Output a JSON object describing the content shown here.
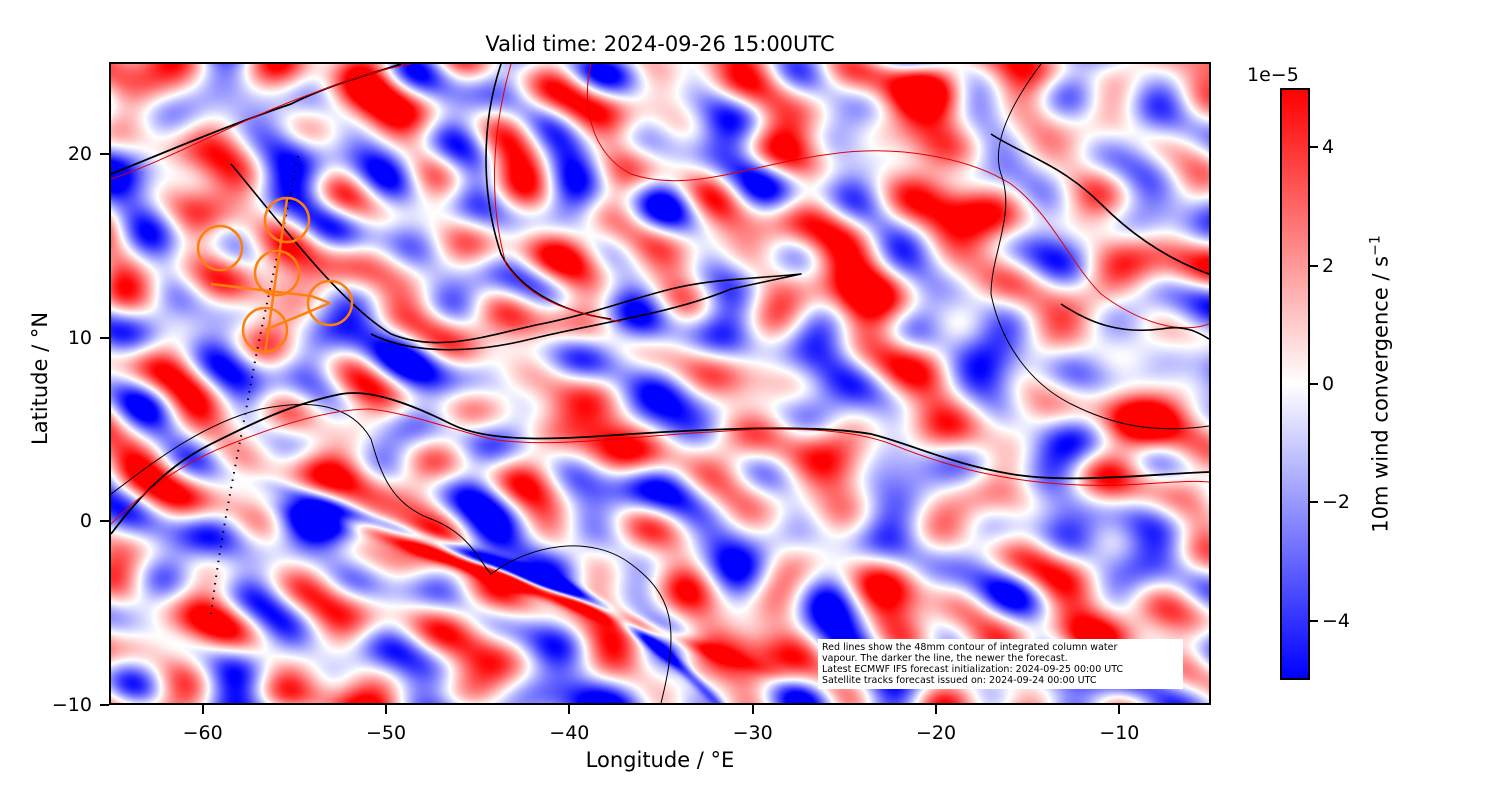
{
  "title": "Valid time: 2024-09-26 15:00UTC",
  "map": {
    "lon_range": [
      -65,
      -5
    ],
    "lat_range": [
      -10,
      25
    ],
    "xlabel": "Longitude / °E",
    "ylabel": "Latitude / °N",
    "x_ticks": [
      "−60",
      "−50",
      "−40",
      "−30",
      "−20",
      "−10"
    ],
    "x_tick_values": [
      -60,
      -50,
      -40,
      -30,
      -20,
      -10
    ],
    "y_ticks": [
      "−10",
      "0",
      "10",
      "20"
    ],
    "y_tick_values": [
      -10,
      0,
      10,
      20
    ],
    "field": "10m wind convergence",
    "colormap": [
      "#0000ff",
      "#ffffff",
      "#ff0000"
    ],
    "contour_colors": [
      "#000000",
      "#8b0000",
      "#ff0000"
    ],
    "satellite_track_color": "#ff7f0e"
  },
  "colorbar": {
    "label": "10m wind convergence / s",
    "label_exponent": "−1",
    "offset_text": "1e−5",
    "range": [
      -5,
      5
    ],
    "ticks": [
      "4",
      "2",
      "0",
      "−2",
      "−4"
    ],
    "tick_values": [
      4,
      2,
      0,
      -2,
      -4
    ]
  },
  "annotation": {
    "lines": [
      "Red lines show the 48mm contour of integrated column water",
      "vapour. The darker the line, the newer the forecast.",
      "Latest ECMWF IFS forecast initialization: 2024-09-25 00:00 UTC",
      "Satellite tracks forecast issued on: 2024-09-24 00:00 UTC"
    ]
  }
}
